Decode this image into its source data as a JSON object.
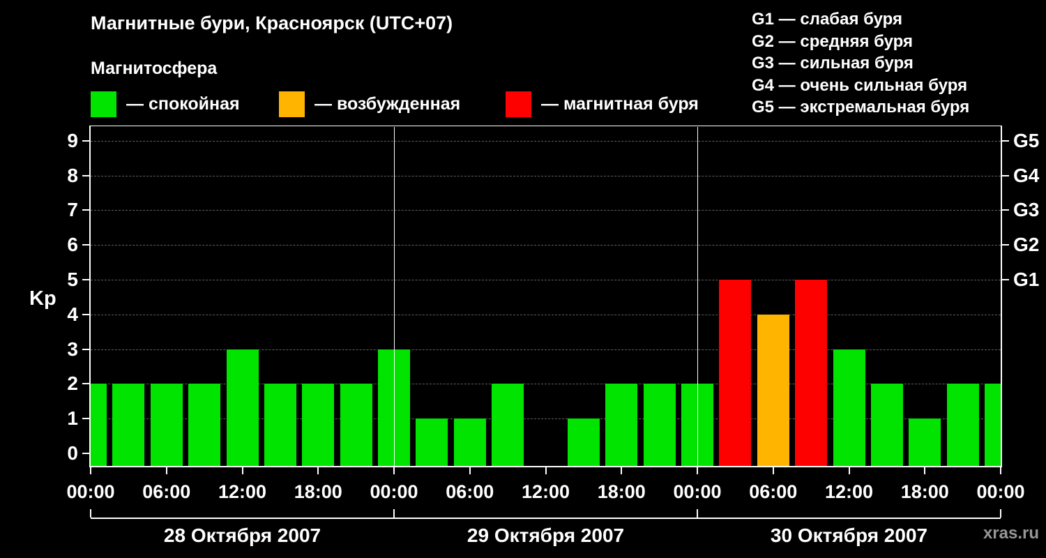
{
  "title": "Магнитные бури, Красноярск (UTC+07)",
  "subtitle": "Магнитосфера",
  "legend": {
    "items": [
      {
        "name": "quiet",
        "label": "— спокойная",
        "color": "#00e400"
      },
      {
        "name": "excited",
        "label": "— возбужденная",
        "color": "#ffb400"
      },
      {
        "name": "storm",
        "label": "— магнитная буря",
        "color": "#fd0000"
      }
    ]
  },
  "g_scale_legend": [
    "G1 — слабая буря",
    "G2 — средняя буря",
    "G3 — сильная буря",
    "G4 — очень сильная буря",
    "G5 — экстремальная буря"
  ],
  "watermark": "xras.ru",
  "chart_data": {
    "type": "bar",
    "title": "Магнитные бури, Красноярск (UTC+07)",
    "ylabel": "Kp",
    "ylim": [
      0,
      9.5
    ],
    "yticks": [
      0,
      1,
      2,
      3,
      4,
      5,
      6,
      7,
      8,
      9
    ],
    "right_axis": [
      {
        "kp": 5,
        "label": "G1"
      },
      {
        "kp": 6,
        "label": "G2"
      },
      {
        "kp": 7,
        "label": "G3"
      },
      {
        "kp": 8,
        "label": "G4"
      },
      {
        "kp": 9,
        "label": "G5"
      }
    ],
    "x_tick_labels": [
      "00:00",
      "06:00",
      "12:00",
      "18:00",
      "00:00",
      "06:00",
      "12:00",
      "18:00",
      "00:00",
      "06:00",
      "12:00",
      "18:00",
      "00:00"
    ],
    "interval_hours": 3,
    "grid": "dashed-horizontal",
    "legend_position": "top",
    "colors": {
      "quiet": "#00e400",
      "excited": "#ffb400",
      "storm": "#fd0000"
    },
    "color_rule": "Kp<=3 green (quiet), Kp=4 orange (excited), Kp>=5 red (storm)",
    "leading_partial_value": 2,
    "days": [
      {
        "date": "28 Октября 2007",
        "kp_values": [
          2,
          2,
          2,
          3,
          2,
          2,
          2,
          3
        ]
      },
      {
        "date": "29 Октября 2007",
        "kp_values": [
          1,
          1,
          2,
          0,
          1,
          2,
          2,
          2
        ]
      },
      {
        "date": "30 Октября 2007",
        "kp_values": [
          5,
          4,
          5,
          3,
          2,
          1,
          2,
          2
        ]
      }
    ]
  }
}
